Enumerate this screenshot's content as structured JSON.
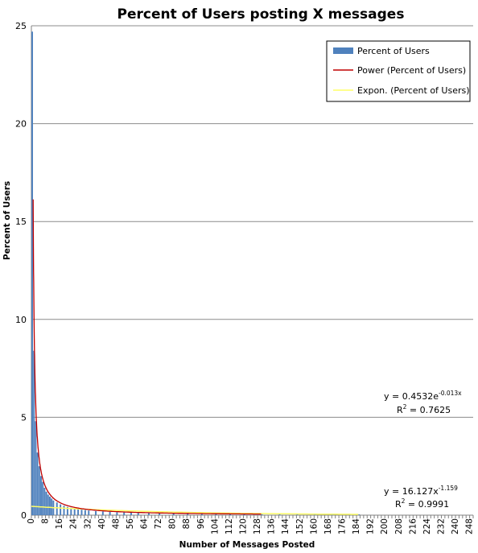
{
  "chart_data": {
    "type": "bar",
    "title": "Percent of Users posting X messages",
    "xlabel": "Number of Messages  Posted",
    "ylabel": "Percent of Users",
    "ylim": [
      0,
      25
    ],
    "yticks": [
      0,
      5,
      10,
      15,
      20,
      25
    ],
    "xlim": [
      0,
      250
    ],
    "xticks": [
      0,
      8,
      16,
      24,
      32,
      40,
      48,
      56,
      64,
      72,
      80,
      88,
      96,
      104,
      112,
      120,
      128,
      136,
      144,
      152,
      160,
      168,
      176,
      184,
      192,
      200,
      208,
      216,
      224,
      232,
      240,
      248
    ],
    "grid": true,
    "legend_position": "top-right",
    "series": [
      {
        "name": "Percent of Users",
        "kind": "bar",
        "color": "#4f81bd",
        "x": [
          0,
          1,
          2,
          3,
          4,
          5,
          6,
          7,
          8,
          9,
          10,
          11,
          12,
          14,
          16,
          18,
          20,
          22,
          24,
          26,
          28,
          30,
          32,
          36,
          40,
          44,
          48,
          52,
          56,
          60,
          66,
          72,
          80,
          88,
          96,
          104,
          112,
          120,
          130,
          140,
          150,
          160,
          170,
          180,
          185
        ],
        "values": [
          24.7,
          8.4,
          4.8,
          3.2,
          2.5,
          2.0,
          1.7,
          1.4,
          1.2,
          1.05,
          0.95,
          0.85,
          0.75,
          0.65,
          0.55,
          0.48,
          0.42,
          0.38,
          0.34,
          0.3,
          0.28,
          0.26,
          0.24,
          0.21,
          0.19,
          0.17,
          0.15,
          0.14,
          0.13,
          0.12,
          0.11,
          0.1,
          0.09,
          0.08,
          0.07,
          0.07,
          0.06,
          0.06,
          0.05,
          0.05,
          0.05,
          0.04,
          0.04,
          0.04,
          0.04
        ]
      },
      {
        "name": "Power (Percent of Users)",
        "kind": "trendline",
        "color": "#c00000",
        "model": "power",
        "a": 16.127,
        "b": -1.159,
        "x_range": [
          1,
          130
        ]
      },
      {
        "name": "Expon. (Percent of Users)",
        "kind": "trendline",
        "color": "#ffff66",
        "model": "exponential",
        "a": 0.4532,
        "b": -0.013,
        "x_range": [
          0,
          185
        ]
      }
    ],
    "annotations": {
      "exp_eq_prefix": "y = 0.4532e",
      "exp_eq_exponent": "-0.013x",
      "exp_r2_prefix": "R",
      "exp_r2_sup": "2",
      "exp_r2_value": " = 0.7625",
      "pow_eq_prefix": "y = 16.127x",
      "pow_eq_exponent": "-1.159",
      "pow_r2_prefix": "R",
      "pow_r2_sup": "2",
      "pow_r2_value": " = 0.9991"
    }
  }
}
